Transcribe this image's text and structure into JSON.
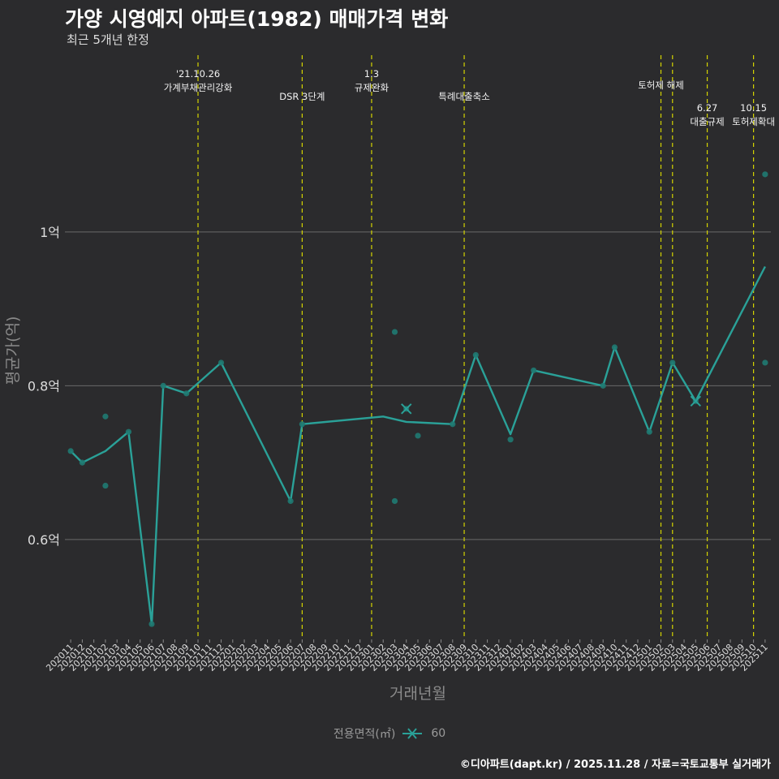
{
  "title": "가양 시영예지 아파트(1982) 매매가격 변화",
  "subtitle": "최근 5개년 한정",
  "caption": "©디아파트(dapt.kr) / 2025.11.28 / 자료=국토교통부 실거래가",
  "colors": {
    "background": "#2b2b2d",
    "line": "#2aa198",
    "point": "#1f7a72",
    "vline": "#d4d400",
    "grid": "#6a6a6a",
    "axis_text": "#dcdcdc",
    "axis_title": "#8a8a8a"
  },
  "chart_data": {
    "type": "line",
    "title": "가양 시영예지 아파트(1982) 매매가격 변화",
    "subtitle": "최근 5개년 한정",
    "xlabel": "거래년월",
    "ylabel": "평균가(억)",
    "ylim": [
      0.47,
      1.23
    ],
    "yticks": [
      {
        "value": 0.6,
        "label": "0.6억"
      },
      {
        "value": 0.8,
        "label": "0.8억"
      },
      {
        "value": 1.0,
        "label": "1억"
      }
    ],
    "categories": [
      "202011",
      "202012",
      "202101",
      "202102",
      "202103",
      "202104",
      "202105",
      "202106",
      "202107",
      "202108",
      "202109",
      "202110",
      "202111",
      "202112",
      "202201",
      "202202",
      "202203",
      "202204",
      "202205",
      "202206",
      "202207",
      "202208",
      "202209",
      "202210",
      "202211",
      "202212",
      "202301",
      "202302",
      "202303",
      "202304",
      "202305",
      "202306",
      "202307",
      "202308",
      "202309",
      "202310",
      "202311",
      "202312",
      "202401",
      "202402",
      "202403",
      "202404",
      "202405",
      "202406",
      "202407",
      "202408",
      "202409",
      "202410",
      "202411",
      "202412",
      "202501",
      "202502",
      "202503",
      "202504",
      "202505",
      "202506",
      "202507",
      "202508",
      "202509",
      "202510",
      "202511"
    ],
    "series": [
      {
        "name": "60",
        "line": [
          {
            "x": "202011",
            "y": 0.715
          },
          {
            "x": "202012",
            "y": 0.7
          },
          {
            "x": "202102",
            "y": 0.715
          },
          {
            "x": "202104",
            "y": 0.74
          },
          {
            "x": "202106",
            "y": 0.49
          },
          {
            "x": "202107",
            "y": 0.8
          },
          {
            "x": "202109",
            "y": 0.79
          },
          {
            "x": "202112",
            "y": 0.83
          },
          {
            "x": "202206",
            "y": 0.65
          },
          {
            "x": "202207",
            "y": 0.75
          },
          {
            "x": "202302",
            "y": 0.76
          },
          {
            "x": "202304",
            "y": 0.753
          },
          {
            "x": "202308",
            "y": 0.75
          },
          {
            "x": "202310",
            "y": 0.84
          },
          {
            "x": "202401",
            "y": 0.737
          },
          {
            "x": "202403",
            "y": 0.82
          },
          {
            "x": "202409",
            "y": 0.8
          },
          {
            "x": "202410",
            "y": 0.85
          },
          {
            "x": "202501",
            "y": 0.74
          },
          {
            "x": "202503",
            "y": 0.83
          },
          {
            "x": "202505",
            "y": 0.78
          },
          {
            "x": "202511",
            "y": 0.955
          }
        ],
        "points": [
          {
            "x": "202011",
            "y": 0.715
          },
          {
            "x": "202012",
            "y": 0.7
          },
          {
            "x": "202102",
            "y": 0.76
          },
          {
            "x": "202102",
            "y": 0.67
          },
          {
            "x": "202104",
            "y": 0.74
          },
          {
            "x": "202106",
            "y": 0.49
          },
          {
            "x": "202107",
            "y": 0.8
          },
          {
            "x": "202109",
            "y": 0.79
          },
          {
            "x": "202112",
            "y": 0.83
          },
          {
            "x": "202206",
            "y": 0.65
          },
          {
            "x": "202207",
            "y": 0.75
          },
          {
            "x": "202303",
            "y": 0.87
          },
          {
            "x": "202303",
            "y": 0.65
          },
          {
            "x": "202304",
            "y": 0.77
          },
          {
            "x": "202305",
            "y": 0.735
          },
          {
            "x": "202308",
            "y": 0.75
          },
          {
            "x": "202310",
            "y": 0.84
          },
          {
            "x": "202401",
            "y": 0.73
          },
          {
            "x": "202403",
            "y": 0.82
          },
          {
            "x": "202409",
            "y": 0.8
          },
          {
            "x": "202410",
            "y": 0.85
          },
          {
            "x": "202501",
            "y": 0.74
          },
          {
            "x": "202503",
            "y": 0.83
          },
          {
            "x": "202505",
            "y": 0.78
          },
          {
            "x": "202511",
            "y": 0.83
          },
          {
            "x": "202511",
            "y": 1.075
          }
        ],
        "markers": [
          {
            "x": "202304",
            "y": 0.77
          },
          {
            "x": "202505",
            "y": 0.78
          }
        ]
      }
    ],
    "events": [
      {
        "x": "202110",
        "lines": [
          "'21.10.26",
          "가계부채관리강화"
        ],
        "level": 0
      },
      {
        "x": "202207",
        "lines": [
          "DSR 3단계"
        ],
        "level": 1
      },
      {
        "x": "202301",
        "lines": [
          "1.3",
          "규제완화"
        ],
        "level": 0
      },
      {
        "x": "202309",
        "lines": [
          "특례대출축소"
        ],
        "level": 1
      },
      {
        "x": "202502",
        "lines": [
          "토허제 해제"
        ],
        "level": 0.5
      },
      {
        "x": "202503",
        "lines": [],
        "level": 0
      },
      {
        "x": "202506",
        "lines": [
          "6.27",
          "대출규제"
        ],
        "level": 1.5
      },
      {
        "x": "202510",
        "lines": [
          "10.15",
          "토허제확대"
        ],
        "level": 1.5
      }
    ],
    "legend": {
      "title": "전용면적(㎡)",
      "entries": [
        "60"
      ],
      "position": "bottom"
    }
  }
}
